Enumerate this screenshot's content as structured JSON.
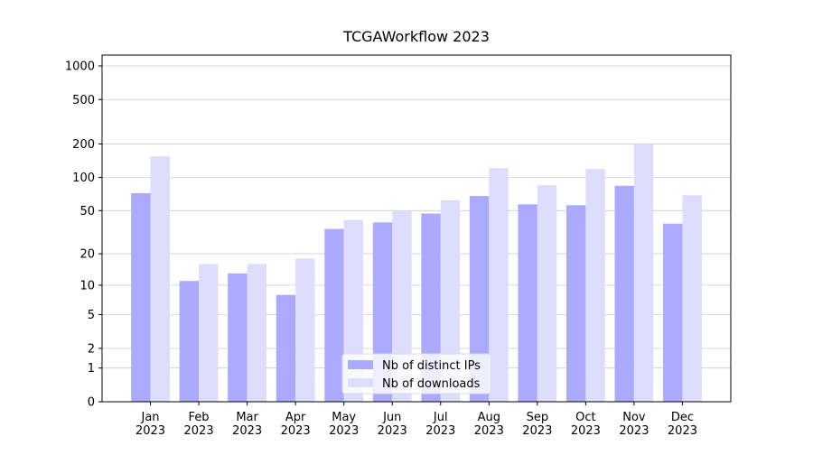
{
  "chart_data": {
    "type": "bar",
    "title": "TCGAWorkflow 2023",
    "categories": [
      "Jan\n2023",
      "Feb\n2023",
      "Mar\n2023",
      "Apr\n2023",
      "May\n2023",
      "Jun\n2023",
      "Jul\n2023",
      "Aug\n2023",
      "Sep\n2023",
      "Oct\n2023",
      "Nov\n2023",
      "Dec\n2023"
    ],
    "series": [
      {
        "name": "Nb of distinct IPs",
        "color": "#aaaaff",
        "values": [
          72,
          11,
          13,
          8,
          34,
          39,
          47,
          68,
          57,
          56,
          84,
          38
        ]
      },
      {
        "name": "Nb of downloads",
        "color": "#ddddff",
        "values": [
          155,
          16,
          16,
          18,
          41,
          50,
          62,
          121,
          85,
          119,
          200,
          69
        ]
      }
    ],
    "yscale": "log1p",
    "ylim": [
      0,
      1250
    ],
    "yticks": [
      0,
      1,
      2,
      5,
      10,
      20,
      50,
      100,
      200,
      500,
      1000
    ],
    "grid": true,
    "legend": "lower center"
  }
}
